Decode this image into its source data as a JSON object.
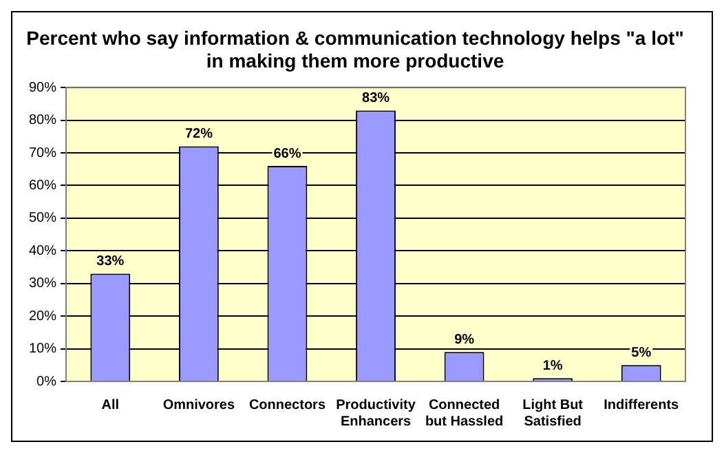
{
  "chart_data": {
    "type": "bar",
    "title": "Percent who say information & communication technology helps \"a lot\" in making them more productive",
    "categories": [
      "All",
      "Omnivores",
      "Connectors",
      "Productivity Enhancers",
      "Connected but Hassled",
      "Light But Satisfied",
      "Indifferents"
    ],
    "values": [
      33,
      72,
      66,
      83,
      9,
      1,
      5
    ],
    "value_labels": [
      "33%",
      "72%",
      "66%",
      "83%",
      "9%",
      "1%",
      "5%"
    ],
    "color": "#9999ff",
    "ylim": [
      0,
      90
    ],
    "yticks": [
      {
        "value": 0,
        "label": "0%"
      },
      {
        "value": 10,
        "label": "10%"
      },
      {
        "value": 20,
        "label": "20%"
      },
      {
        "value": 30,
        "label": "30%"
      },
      {
        "value": 40,
        "label": "40%"
      },
      {
        "value": 50,
        "label": "50%"
      },
      {
        "value": 60,
        "label": "60%"
      },
      {
        "value": 70,
        "label": "70%"
      },
      {
        "value": 80,
        "label": "80%"
      },
      {
        "value": 90,
        "label": "90%"
      }
    ],
    "grid": "y",
    "legend": false
  }
}
